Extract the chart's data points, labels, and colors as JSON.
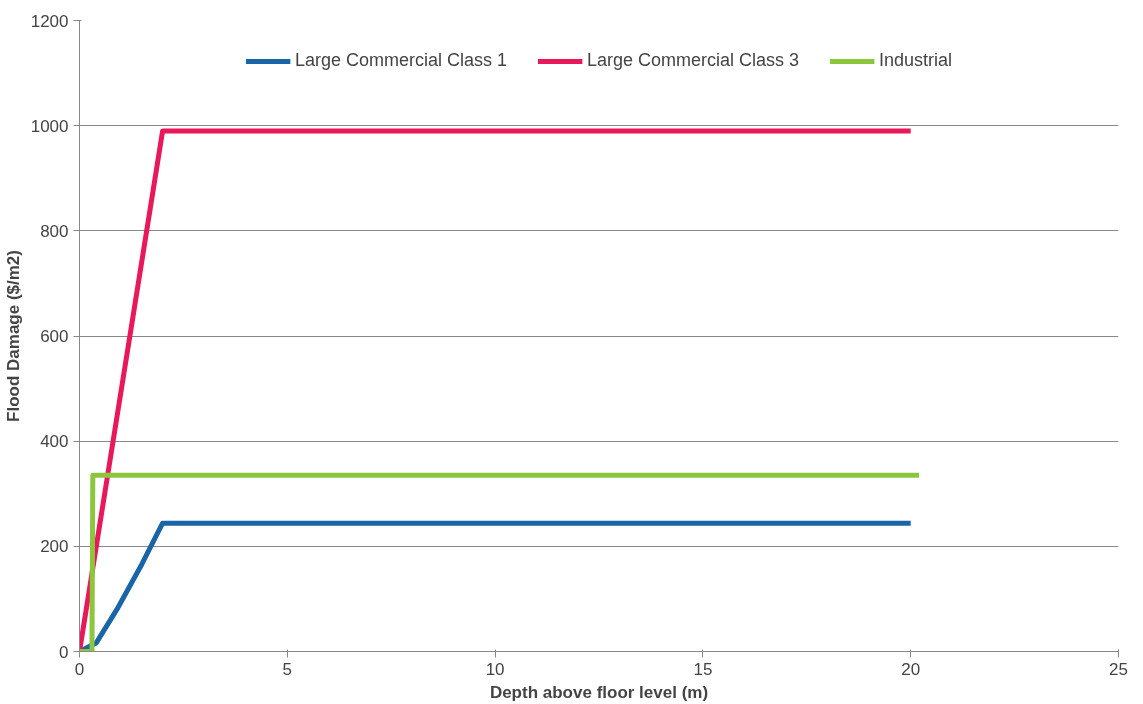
{
  "chart_data": {
    "type": "line",
    "xlabel": "Depth above floor level (m)",
    "ylabel": "Flood Damage ($/m2)",
    "xlim": [
      0,
      25
    ],
    "xticks": [
      0,
      5,
      10,
      15,
      20,
      25
    ],
    "ylim": [
      0,
      1200
    ],
    "yticks": [
      0,
      200,
      400,
      600,
      800,
      1000,
      1200
    ],
    "grid": "y",
    "legend": "top",
    "marker": "none",
    "line_style": "solid",
    "series": [
      {
        "name": "Large Commercial Class 1",
        "color": "#1a64a8",
        "x": [
          0,
          0.4,
          0.9,
          1.5,
          2,
          20
        ],
        "values": [
          0,
          16,
          80,
          166,
          244,
          244
        ]
      },
      {
        "name": "Large Commercial Class 3",
        "color": "#e8185a",
        "x": [
          0,
          2,
          20
        ],
        "values": [
          0,
          990,
          990
        ]
      },
      {
        "name": "Industrial",
        "color": "#8cc63e",
        "x": [
          0,
          0.3,
          0.32,
          20.2
        ],
        "values": [
          0,
          0,
          335,
          335
        ]
      }
    ]
  }
}
